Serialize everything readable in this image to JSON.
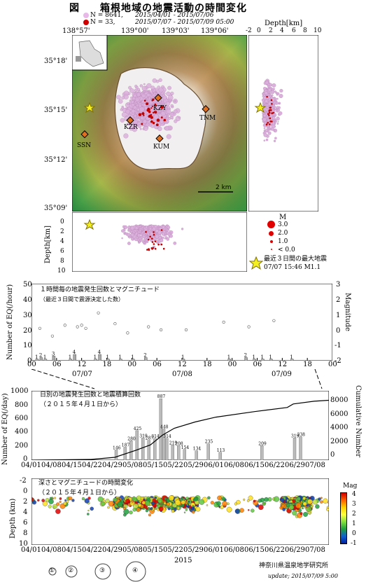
{
  "header": {
    "figure_label": "図",
    "title": "箱根地域の地震活動の時間変化",
    "legend_line1_count": "N = 8641,",
    "legend_line1_range": "2015/04/01 - 2015/07/06",
    "legend_line2_count": "N = 33,",
    "legend_line2_range": "2015/07/07 - 2015/07/09 05:00"
  },
  "map": {
    "lon_ticks": [
      "138°57'",
      "139°00'",
      "139°03'",
      "139°06'"
    ],
    "lat_ticks": [
      "35°18'",
      "35°15'",
      "35°12'",
      "35°09'"
    ],
    "scale_label": "2 km",
    "stations": [
      "KZY",
      "TNM",
      "KZR",
      "KUM",
      "SSN"
    ]
  },
  "depth_side": {
    "title": "Depth[km]",
    "ticks": [
      "-2",
      "0",
      "2",
      "4",
      "6",
      "8",
      "10"
    ]
  },
  "depth_bottom": {
    "ylabel": "Depth[km]",
    "ticks": [
      "0",
      "2",
      "4",
      "6",
      "8",
      "10"
    ]
  },
  "mag_legend": {
    "title": "M",
    "items": [
      "3.0",
      "2.0",
      "1.0",
      "< 0.0"
    ],
    "star_label_line1": "最近３日間の最大地震",
    "star_label_line2": "07/07 15:46 M1.1"
  },
  "hourly_panel": {
    "caption_line1": "１時間毎の地震発生回数とマグニチュード",
    "caption_line2": "（最近３日間で震源決定した数）",
    "ylabel_left": "Number of EQ(/hour)",
    "ylabel_right": "Magnitude",
    "left_ticks": [
      "0",
      "10",
      "20",
      "30",
      "40",
      "50"
    ],
    "right_ticks": [
      "-2",
      "-1",
      "0",
      "1",
      "2",
      "3"
    ],
    "x_ticks": [
      "00",
      "06",
      "12",
      "18",
      "00",
      "06",
      "12",
      "18",
      "00",
      "06",
      "12",
      "18",
      "00"
    ],
    "date_labels": [
      "07/07",
      "07/08",
      "07/09"
    ]
  },
  "daily_panel": {
    "caption_line1": "日別の地震発生回数と地震積算回数",
    "caption_line2": "（２０１５年４月１日から）",
    "ylabel_left": "Number of EQ(/day)",
    "ylabel_right": "Cumulative Number",
    "left_ticks": [
      "0",
      "200",
      "400",
      "600",
      "800",
      "1000"
    ],
    "right_ticks": [
      "0",
      "2000",
      "4000",
      "6000",
      "8000"
    ],
    "x_ticks": [
      "04/01",
      "04/08",
      "04/15",
      "04/22",
      "04/29",
      "05/08",
      "05/15",
      "05/22",
      "05/29",
      "06/01",
      "06/08",
      "06/15",
      "06/22",
      "06/29",
      "07/08"
    ]
  },
  "depth_panel": {
    "caption_line1": "深さとマグニチュードの時間変化",
    "caption_line2": "（２０１５年４月１日から）",
    "ylabel": "Depth (km)",
    "y_ticks": [
      "-2",
      "0",
      "2",
      "4",
      "6",
      "8",
      "10"
    ],
    "x_ticks": [
      "04/01",
      "04/08",
      "04/15",
      "04/22",
      "04/29",
      "05/08",
      "05/15",
      "05/22",
      "05/29",
      "06/01",
      "06/08",
      "06/15",
      "06/22",
      "06/29",
      "07/08"
    ],
    "year_label": "2015",
    "colorbar_title": "Mag",
    "colorbar_ticks": [
      "4",
      "3",
      "2",
      "1",
      "0",
      "-1"
    ]
  },
  "size_legend": [
    "①",
    "②",
    "③",
    "④"
  ],
  "footer": {
    "institute": "神奈川県温泉地学研究所",
    "update": "update; 2015/07/09 5:00"
  },
  "chart_data": [
    {
      "type": "bar",
      "title": "１時間毎の地震発生回数とマグニチュード",
      "xlabel": "",
      "ylabel": "Number of EQ(/hour)",
      "ylim": [
        0,
        50
      ],
      "x": [
        1,
        2,
        3,
        5,
        9,
        10,
        15,
        16,
        18,
        21,
        24,
        27,
        36,
        47,
        51,
        53,
        55,
        57,
        62
      ],
      "values": [
        1,
        2,
        1,
        3,
        1,
        4,
        1,
        4,
        1,
        1,
        1,
        2,
        1,
        1,
        2,
        1,
        1,
        1,
        1
      ],
      "series": [
        {
          "name": "Magnitude",
          "x": [
            2,
            5,
            8,
            11,
            12,
            13,
            16,
            20,
            23,
            28,
            31,
            37,
            46,
            52,
            58
          ],
          "values": [
            0.1,
            -0.4,
            0.3,
            0.2,
            0.3,
            0.1,
            1.1,
            0.4,
            -0.2,
            0.2,
            0.0,
            0.0,
            0.5,
            0.2,
            0.6
          ]
        }
      ]
    },
    {
      "type": "bar",
      "title": "日別の地震発生回数と地震積算回数",
      "ylabel": "Number of EQ(/day)",
      "ylim": [
        0,
        1000
      ],
      "categories": [
        "04/29",
        "05/02",
        "05/04",
        "05/06",
        "05/08",
        "05/10",
        "05/12",
        "05/14",
        "05/15",
        "05/16",
        "05/18",
        "05/20",
        "05/22",
        "05/26",
        "05/30",
        "06/03",
        "06/17",
        "06/28",
        "06/30"
      ],
      "values": [
        146,
        187,
        280,
        425,
        319,
        287,
        314,
        887,
        448,
        314,
        219,
        208,
        154,
        134,
        235,
        113,
        209,
        319,
        338
      ],
      "cumulative_ylim": [
        0,
        10000
      ],
      "cumulative_end": 8641
    },
    {
      "type": "scatter",
      "title": "深さとマグニチュードの時間変化",
      "ylabel": "Depth (km)",
      "ylim": [
        10,
        -2
      ],
      "colorbar_range": [
        -1,
        4
      ]
    }
  ]
}
